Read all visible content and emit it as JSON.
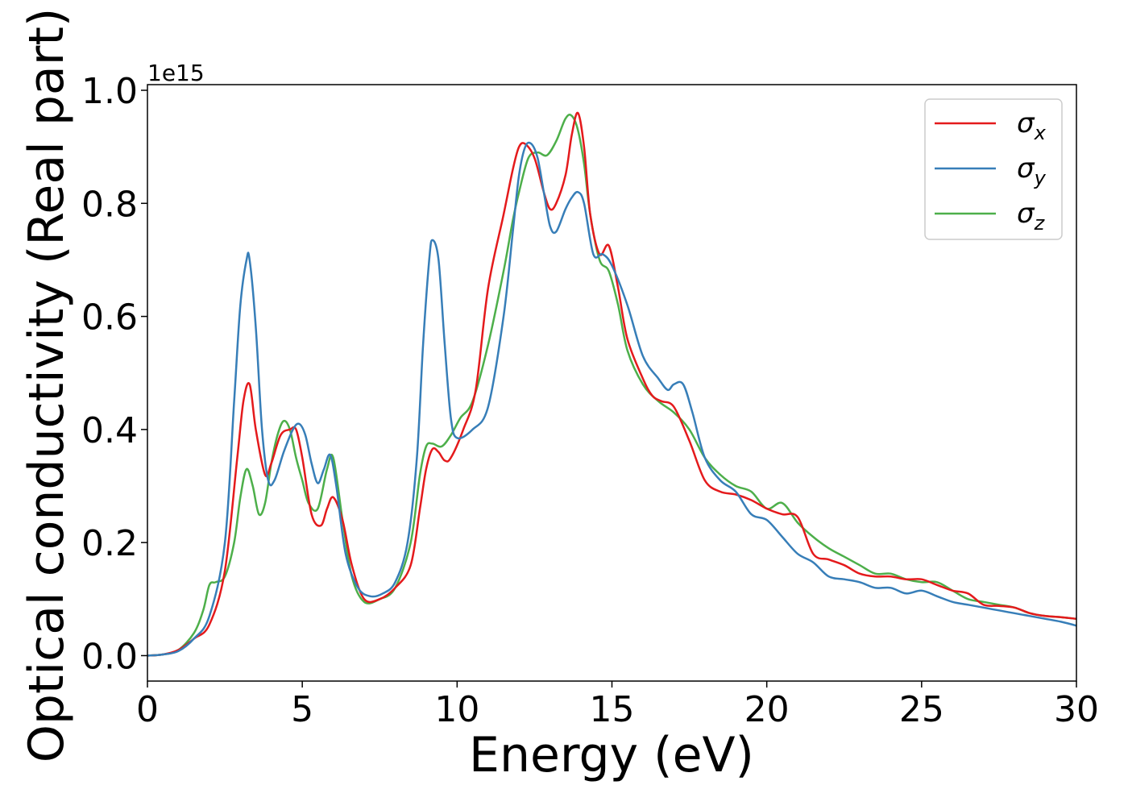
{
  "chart_data": {
    "type": "line",
    "xlabel": "Energy (eV)",
    "ylabel": "Optical conductivity (Real part)",
    "y_offset_label": "1e15",
    "xlim": [
      0,
      30
    ],
    "ylim": [
      -0.045,
      1.01
    ],
    "y_scale_factor": 1000000000000000.0,
    "xticks": [
      0,
      5,
      10,
      15,
      20,
      25,
      30
    ],
    "xtick_labels": [
      "0",
      "5",
      "10",
      "15",
      "20",
      "25",
      "30"
    ],
    "yticks": [
      0.0,
      0.2,
      0.4,
      0.6,
      0.8,
      1.0
    ],
    "ytick_labels": [
      "0.0",
      "0.2",
      "0.4",
      "0.6",
      "0.8",
      "1.0"
    ],
    "grid": false,
    "legend_position": "top-right",
    "series": [
      {
        "name": "σx",
        "legend_base": "σ",
        "legend_sub": "x",
        "color": "#e41a1c",
        "x": [
          0,
          0.5,
          1.0,
          1.5,
          2.0,
          2.5,
          2.9,
          3.1,
          3.3,
          3.5,
          3.8,
          4.0,
          4.3,
          4.6,
          4.8,
          5.0,
          5.3,
          5.6,
          5.8,
          6.0,
          6.3,
          6.6,
          7.0,
          7.5,
          8.0,
          8.5,
          8.8,
          9.0,
          9.2,
          9.4,
          9.6,
          9.8,
          10.2,
          10.6,
          11.0,
          11.5,
          11.8,
          12.0,
          12.2,
          12.5,
          12.8,
          13.0,
          13.2,
          13.5,
          13.7,
          13.9,
          14.1,
          14.3,
          14.6,
          14.9,
          15.2,
          15.5,
          16.0,
          16.3,
          16.6,
          17.0,
          17.5,
          18.0,
          18.5,
          19.0,
          19.5,
          20.0,
          20.5,
          21.0,
          21.5,
          22.0,
          22.5,
          23.0,
          23.5,
          24.0,
          24.5,
          25.0,
          25.5,
          26.0,
          26.5,
          27.0,
          27.5,
          28.0,
          28.5,
          29.0,
          29.5,
          30.0
        ],
        "y": [
          0.0,
          0.002,
          0.01,
          0.03,
          0.055,
          0.15,
          0.35,
          0.45,
          0.48,
          0.4,
          0.32,
          0.34,
          0.39,
          0.4,
          0.4,
          0.35,
          0.25,
          0.23,
          0.26,
          0.28,
          0.24,
          0.16,
          0.1,
          0.1,
          0.12,
          0.16,
          0.26,
          0.33,
          0.365,
          0.36,
          0.345,
          0.35,
          0.4,
          0.47,
          0.65,
          0.78,
          0.86,
          0.9,
          0.905,
          0.88,
          0.82,
          0.79,
          0.8,
          0.85,
          0.92,
          0.96,
          0.9,
          0.78,
          0.71,
          0.725,
          0.65,
          0.56,
          0.49,
          0.46,
          0.45,
          0.44,
          0.38,
          0.31,
          0.29,
          0.285,
          0.275,
          0.26,
          0.25,
          0.245,
          0.18,
          0.17,
          0.16,
          0.145,
          0.14,
          0.14,
          0.135,
          0.135,
          0.125,
          0.115,
          0.11,
          0.09,
          0.088,
          0.085,
          0.075,
          0.07,
          0.068,
          0.065
        ]
      },
      {
        "name": "σy",
        "legend_base": "σ",
        "legend_sub": "y",
        "color": "#377eb8",
        "x": [
          0,
          0.5,
          1.0,
          1.5,
          2.0,
          2.5,
          2.8,
          3.0,
          3.2,
          3.3,
          3.5,
          3.7,
          3.9,
          4.1,
          4.4,
          4.7,
          4.9,
          5.1,
          5.3,
          5.5,
          5.7,
          5.9,
          6.1,
          6.4,
          6.8,
          7.2,
          7.6,
          8.0,
          8.4,
          8.7,
          8.9,
          9.1,
          9.2,
          9.4,
          9.6,
          9.8,
          10.0,
          10.5,
          11.0,
          11.5,
          11.8,
          12.0,
          12.2,
          12.4,
          12.6,
          12.8,
          13.0,
          13.2,
          13.5,
          13.7,
          13.9,
          14.1,
          14.4,
          14.7,
          15.0,
          15.5,
          16.0,
          16.5,
          16.8,
          17.0,
          17.3,
          17.6,
          18.0,
          18.5,
          19.0,
          19.5,
          20.0,
          20.5,
          21.0,
          21.5,
          22.0,
          22.5,
          23.0,
          23.5,
          24.0,
          24.5,
          25.0,
          25.5,
          26.0,
          26.5,
          27.0,
          27.5,
          28.0,
          28.5,
          29.0,
          29.5,
          30.0
        ],
        "y": [
          0.0,
          0.002,
          0.008,
          0.03,
          0.07,
          0.2,
          0.45,
          0.62,
          0.7,
          0.7,
          0.58,
          0.4,
          0.31,
          0.31,
          0.36,
          0.4,
          0.41,
          0.39,
          0.34,
          0.305,
          0.33,
          0.355,
          0.3,
          0.18,
          0.12,
          0.105,
          0.11,
          0.13,
          0.2,
          0.35,
          0.55,
          0.7,
          0.735,
          0.7,
          0.55,
          0.42,
          0.385,
          0.4,
          0.44,
          0.6,
          0.75,
          0.85,
          0.9,
          0.905,
          0.88,
          0.82,
          0.76,
          0.75,
          0.79,
          0.81,
          0.82,
          0.8,
          0.71,
          0.71,
          0.69,
          0.62,
          0.53,
          0.49,
          0.47,
          0.48,
          0.48,
          0.43,
          0.35,
          0.31,
          0.29,
          0.25,
          0.24,
          0.21,
          0.18,
          0.165,
          0.14,
          0.135,
          0.13,
          0.12,
          0.12,
          0.11,
          0.115,
          0.105,
          0.095,
          0.09,
          0.085,
          0.08,
          0.075,
          0.07,
          0.065,
          0.06,
          0.053
        ]
      },
      {
        "name": "σz",
        "legend_base": "σ",
        "legend_sub": "z",
        "color": "#4daf4a",
        "x": [
          0,
          0.5,
          1.0,
          1.5,
          1.8,
          2.0,
          2.2,
          2.5,
          2.8,
          3.0,
          3.2,
          3.4,
          3.6,
          3.8,
          4.0,
          4.2,
          4.4,
          4.6,
          4.8,
          5.0,
          5.2,
          5.5,
          5.8,
          6.0,
          6.3,
          6.6,
          7.0,
          7.5,
          8.0,
          8.5,
          8.8,
          9.0,
          9.2,
          9.5,
          9.8,
          10.1,
          10.5,
          11.0,
          11.5,
          11.8,
          12.0,
          12.3,
          12.6,
          12.9,
          13.2,
          13.5,
          13.7,
          13.9,
          14.1,
          14.3,
          14.6,
          14.9,
          15.2,
          15.5,
          16.0,
          16.5,
          17.0,
          17.5,
          18.0,
          18.5,
          19.0,
          19.5,
          20.0,
          20.5,
          21.0,
          21.5,
          22.0,
          22.5,
          23.0,
          23.5,
          24.0,
          24.5,
          25.0,
          25.5,
          26.0,
          26.5,
          27.0,
          27.5,
          28.0,
          28.5,
          29.0,
          29.5,
          30.0
        ],
        "y": [
          0.0,
          0.002,
          0.01,
          0.04,
          0.08,
          0.125,
          0.13,
          0.14,
          0.2,
          0.28,
          0.33,
          0.3,
          0.25,
          0.27,
          0.34,
          0.39,
          0.415,
          0.4,
          0.35,
          0.31,
          0.27,
          0.26,
          0.33,
          0.35,
          0.24,
          0.14,
          0.095,
          0.1,
          0.12,
          0.2,
          0.32,
          0.37,
          0.375,
          0.37,
          0.39,
          0.42,
          0.45,
          0.55,
          0.68,
          0.77,
          0.82,
          0.88,
          0.89,
          0.885,
          0.91,
          0.95,
          0.955,
          0.93,
          0.87,
          0.78,
          0.7,
          0.68,
          0.62,
          0.54,
          0.48,
          0.45,
          0.43,
          0.4,
          0.35,
          0.32,
          0.3,
          0.29,
          0.26,
          0.27,
          0.235,
          0.21,
          0.19,
          0.175,
          0.16,
          0.145,
          0.145,
          0.135,
          0.13,
          0.13,
          0.115,
          0.1,
          0.095,
          0.09,
          0.085,
          0.075,
          0.07,
          0.068,
          0.065
        ]
      }
    ]
  }
}
